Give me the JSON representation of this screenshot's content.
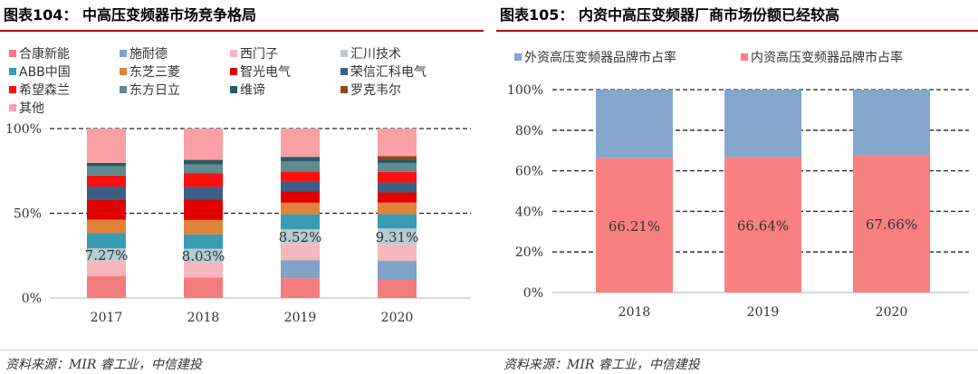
{
  "left": {
    "title": "图表104： 中高压变频器市场竞争格局",
    "source": "资料来源：MIR 睿工业，中信建投"
  },
  "right": {
    "title": "图表105： 内资中高压变频器厂商市场份额已经较高",
    "source": "资料来源：MIR 睿工业，中信建投"
  },
  "chart_data": [
    {
      "type": "bar",
      "stacked": true,
      "title": "",
      "ylim": [
        0,
        100
      ],
      "yticks": [
        "0%",
        "50%",
        "100%"
      ],
      "grid": "dashed at 50% and 100%",
      "legend": "top",
      "categories": [
        "2017",
        "2018",
        "2019",
        "2020"
      ],
      "series": [
        {
          "name": "合康新能",
          "color": "#f47c7c",
          "values": [
            13,
            12,
            11.7,
            10.7
          ]
        },
        {
          "name": "施耐德",
          "color": "#7fa3c9",
          "values": [
            0,
            0,
            10.5,
            11.2
          ]
        },
        {
          "name": "西门子",
          "color": "#f7b6bd",
          "values": [
            9,
            9,
            9.8,
            9.8
          ]
        },
        {
          "name": "汇川技术",
          "color": "#b7cbd3",
          "values": [
            7.27,
            8.03,
            8.52,
            9.31
          ],
          "labels": [
            "7.27%",
            "8.03%",
            "8.52%",
            "9.31%"
          ]
        },
        {
          "name": "ABB中国",
          "color": "#3a9bb5",
          "values": [
            9,
            8.5,
            8.9,
            8.5
          ]
        },
        {
          "name": "东芝三菱",
          "color": "#e0843a",
          "values": [
            8,
            8.5,
            6.8,
            6.8
          ]
        },
        {
          "name": "智光电气",
          "color": "#e00000",
          "values": [
            11.5,
            12,
            6.6,
            6
          ]
        },
        {
          "name": "荣信汇科电气",
          "color": "#3d5f86",
          "values": [
            8,
            7.5,
            6.2,
            5.9
          ]
        },
        {
          "name": "希望森兰",
          "color": "#ff1010",
          "values": [
            6.5,
            8,
            5.7,
            6.2
          ]
        },
        {
          "name": "东方日立",
          "color": "#5f8a8e",
          "values": [
            5.5,
            5.3,
            5.9,
            5.3
          ]
        },
        {
          "name": "维谛",
          "color": "#2a5a68",
          "values": [
            2,
            2.7,
            2.7,
            2.1
          ]
        },
        {
          "name": "罗克韦尔",
          "color": "#8b4a1e",
          "values": [
            0,
            0,
            0,
            2
          ]
        },
        {
          "name": "其他",
          "color": "#f9a0a5",
          "values": [
            20.23,
            18.47,
            16.68,
            16.19
          ]
        }
      ]
    },
    {
      "type": "bar",
      "stacked": true,
      "title": "",
      "ylim": [
        0,
        100
      ],
      "yticks": [
        "0%",
        "20%",
        "40%",
        "60%",
        "80%",
        "100%"
      ],
      "grid": "dashed horizontal",
      "legend": "top",
      "categories": [
        "2018",
        "2019",
        "2020"
      ],
      "series": [
        {
          "name": "内资高压变频器品牌市占率",
          "color": "#f88080",
          "values": [
            66.21,
            66.64,
            67.66
          ],
          "labels": [
            "66.21%",
            "66.64%",
            "67.66%"
          ]
        },
        {
          "name": "外资高压变频器品牌市占率",
          "color": "#85a6cb",
          "values": [
            33.79,
            33.36,
            32.34
          ]
        }
      ]
    }
  ]
}
